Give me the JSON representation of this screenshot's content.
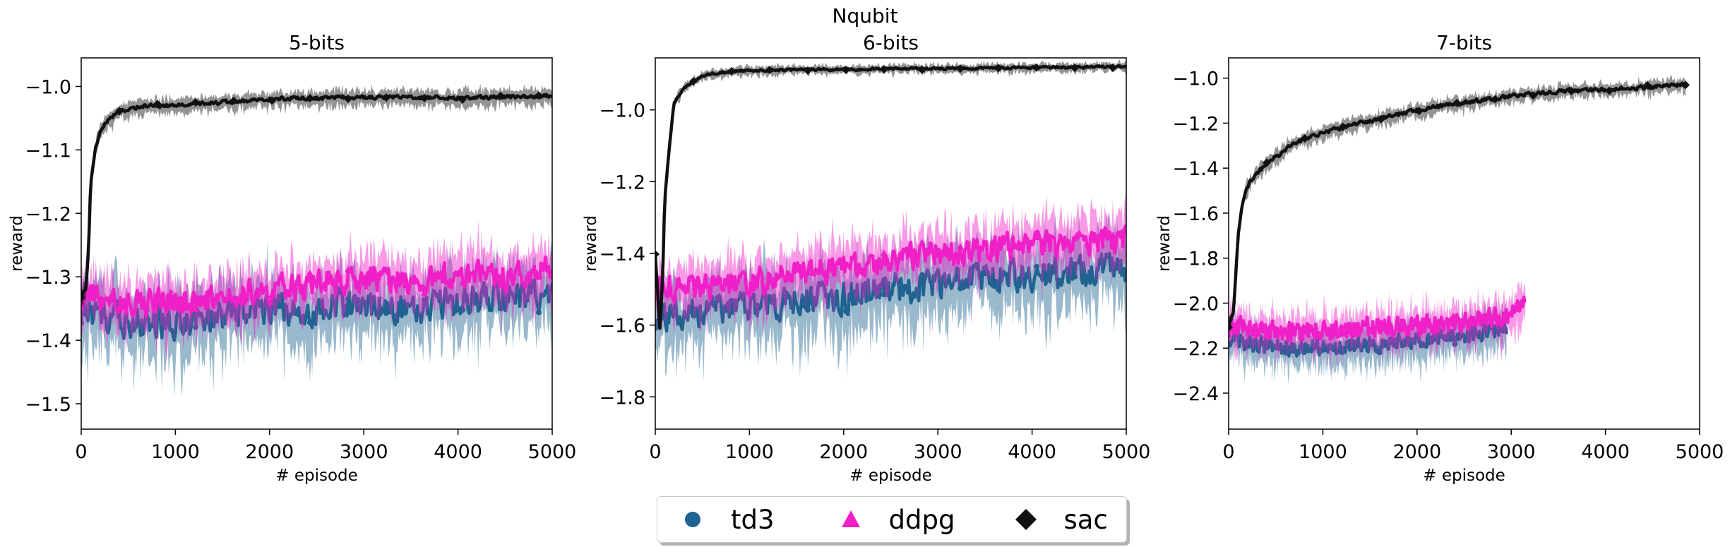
{
  "figure": {
    "title": "Nqubit"
  },
  "legend": {
    "items": [
      {
        "label": "td3",
        "marker": "circle",
        "color": "#1f6391"
      },
      {
        "label": "ddpg",
        "marker": "triangle",
        "color": "#f020c8"
      },
      {
        "label": "sac",
        "marker": "diamond",
        "color": "#111111"
      }
    ]
  },
  "chart_data": [
    {
      "type": "line",
      "title": "5-bits",
      "xlabel": "# episode",
      "ylabel": "reward",
      "xlim": [
        0,
        5000
      ],
      "ylim": [
        -1.54,
        -0.955
      ],
      "xticks": [
        0,
        1000,
        2000,
        3000,
        4000,
        5000
      ],
      "yticks": [
        -1.5,
        -1.4,
        -1.3,
        -1.2,
        -1.1,
        -1.0
      ],
      "ytick_labels": [
        "−1.5",
        "−1.4",
        "−1.3",
        "−1.2",
        "−1.1",
        "−1.0"
      ],
      "grid": false,
      "series": [
        {
          "name": "sac",
          "color": "#111111",
          "x": [
            0,
            50,
            80,
            100,
            150,
            200,
            300,
            400,
            500,
            700,
            1000,
            1500,
            2000,
            2500,
            3000,
            3500,
            4000,
            4500,
            5000
          ],
          "y": [
            -1.33,
            -1.32,
            -1.25,
            -1.15,
            -1.1,
            -1.07,
            -1.05,
            -1.04,
            -1.035,
            -1.03,
            -1.03,
            -1.025,
            -1.02,
            -1.018,
            -1.017,
            -1.017,
            -1.018,
            -1.017,
            -1.015
          ],
          "band": 0.012,
          "noise": 0.004,
          "end": 5000
        },
        {
          "name": "td3",
          "color": "#1f6391",
          "x": [
            0,
            500,
            1000,
            1500,
            2000,
            2500,
            3000,
            3500,
            4000,
            4500,
            5000
          ],
          "y": [
            -1.35,
            -1.37,
            -1.37,
            -1.36,
            -1.35,
            -1.35,
            -1.34,
            -1.35,
            -1.34,
            -1.33,
            -1.33
          ],
          "band": 0.05,
          "noise": 0.035,
          "end": 5000
        },
        {
          "name": "ddpg",
          "color": "#f020c8",
          "x": [
            0,
            500,
            1000,
            1500,
            2000,
            2500,
            3000,
            3500,
            4000,
            4500,
            5000
          ],
          "y": [
            -1.33,
            -1.34,
            -1.34,
            -1.33,
            -1.32,
            -1.31,
            -1.3,
            -1.31,
            -1.3,
            -1.3,
            -1.29
          ],
          "band": 0.04,
          "noise": 0.03,
          "end": 5000
        }
      ]
    },
    {
      "type": "line",
      "title": "6-bits",
      "xlabel": "# episode",
      "ylabel": "reward",
      "xlim": [
        0,
        5000
      ],
      "ylim": [
        -1.89,
        -0.855
      ],
      "xticks": [
        0,
        1000,
        2000,
        3000,
        4000,
        5000
      ],
      "yticks": [
        -1.8,
        -1.6,
        -1.4,
        -1.2,
        -1.0
      ],
      "ytick_labels": [
        "−1.8",
        "−1.6",
        "−1.4",
        "−1.2",
        "−1.0"
      ],
      "grid": false,
      "series": [
        {
          "name": "sac",
          "color": "#111111",
          "x": [
            0,
            50,
            80,
            100,
            150,
            200,
            300,
            400,
            500,
            700,
            1000,
            1500,
            2000,
            3000,
            4000,
            5000
          ],
          "y": [
            -1.4,
            -1.62,
            -1.45,
            -1.25,
            -1.1,
            -0.98,
            -0.94,
            -0.92,
            -0.905,
            -0.895,
            -0.89,
            -0.888,
            -0.887,
            -0.885,
            -0.882,
            -0.88
          ],
          "band": 0.012,
          "noise": 0.004,
          "end": 5000
        },
        {
          "name": "td3",
          "color": "#1f6391",
          "x": [
            0,
            500,
            1000,
            1500,
            2000,
            2500,
            3000,
            3500,
            4000,
            4500,
            5000
          ],
          "y": [
            -1.57,
            -1.56,
            -1.55,
            -1.53,
            -1.52,
            -1.5,
            -1.48,
            -1.47,
            -1.46,
            -1.45,
            -1.44
          ],
          "band": 0.09,
          "noise": 0.06,
          "end": 5000
        },
        {
          "name": "ddpg",
          "color": "#f020c8",
          "x": [
            0,
            500,
            1000,
            1500,
            2000,
            2500,
            3000,
            3500,
            4000,
            4500,
            5000
          ],
          "y": [
            -1.49,
            -1.5,
            -1.48,
            -1.46,
            -1.44,
            -1.42,
            -1.4,
            -1.39,
            -1.38,
            -1.37,
            -1.36
          ],
          "band": 0.07,
          "noise": 0.05,
          "end": 5000
        }
      ]
    },
    {
      "type": "line",
      "title": "7-bits",
      "xlabel": "# episode",
      "ylabel": "reward",
      "xlim": [
        0,
        5000
      ],
      "ylim": [
        -2.56,
        -0.91
      ],
      "xticks": [
        0,
        1000,
        2000,
        3000,
        4000,
        5000
      ],
      "yticks": [
        -2.4,
        -2.2,
        -2.0,
        -1.8,
        -1.6,
        -1.4,
        -1.2,
        -1.0
      ],
      "ytick_labels": [
        "−2.4",
        "−2.2",
        "−2.0",
        "−1.8",
        "−1.6",
        "−1.4",
        "−1.2",
        "−1.0"
      ],
      "grid": false,
      "series": [
        {
          "name": "sac",
          "color": "#111111",
          "x": [
            0,
            50,
            100,
            150,
            200,
            300,
            500,
            700,
            1000,
            1500,
            2000,
            2500,
            3000,
            3500,
            4000,
            4500,
            4850
          ],
          "y": [
            -2.1,
            -2.05,
            -1.7,
            -1.55,
            -1.48,
            -1.42,
            -1.35,
            -1.29,
            -1.24,
            -1.19,
            -1.14,
            -1.11,
            -1.08,
            -1.06,
            -1.05,
            -1.04,
            -1.03
          ],
          "band": 0.03,
          "noise": 0.012,
          "end": 4850
        },
        {
          "name": "td3",
          "color": "#1f6391",
          "x": [
            0,
            500,
            1000,
            1500,
            2000,
            2500,
            3000
          ],
          "y": [
            -2.15,
            -2.2,
            -2.19,
            -2.18,
            -2.16,
            -2.14,
            -2.1
          ],
          "band": 0.08,
          "noise": 0.05,
          "end": 2950
        },
        {
          "name": "ddpg",
          "color": "#f020c8",
          "x": [
            0,
            500,
            1000,
            1500,
            2000,
            2500,
            3000,
            3150
          ],
          "y": [
            -2.1,
            -2.13,
            -2.12,
            -2.11,
            -2.1,
            -2.08,
            -2.05,
            -1.98
          ],
          "band": 0.08,
          "noise": 0.06,
          "end": 3150
        }
      ]
    }
  ]
}
